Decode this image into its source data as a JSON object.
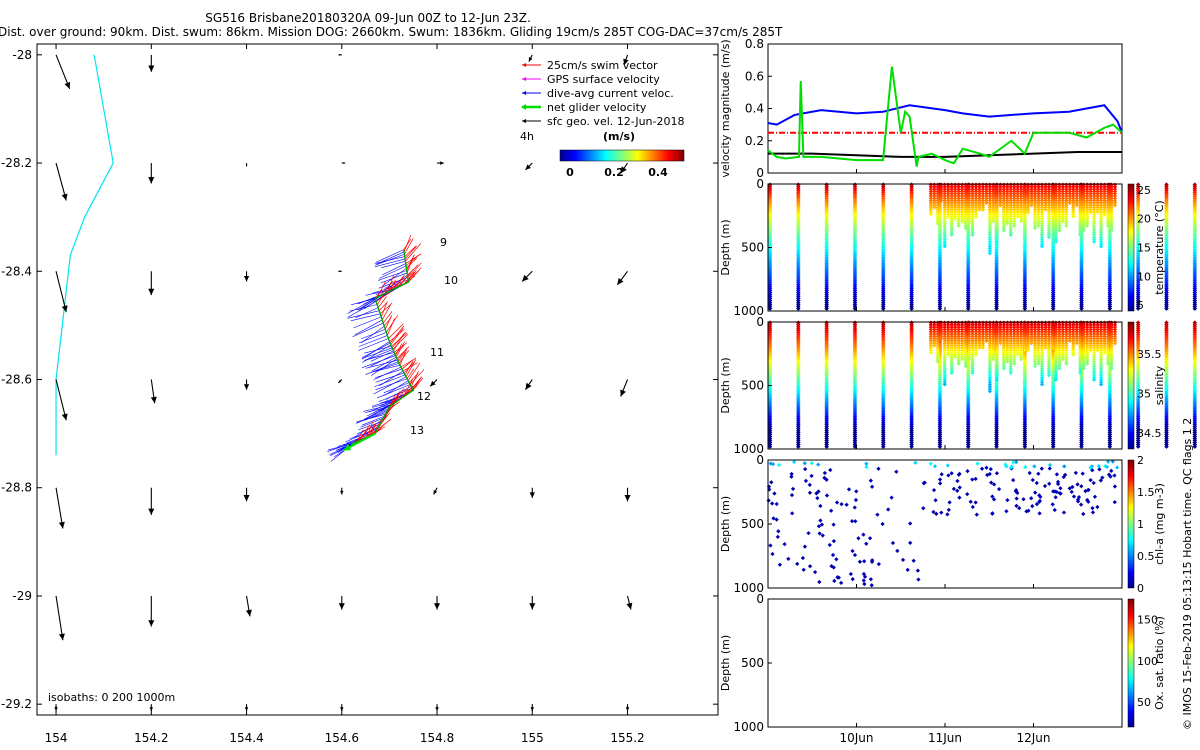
{
  "title": {
    "line1": "SG516 Brisbane20180320A 09-Jun 00Z to 12-Jun 23Z.",
    "line2": "Dist. over ground: 90km. Dist. swum: 86km. Mission DOG: 2660km. Swum: 1836km. Gliding 19cm/s 285T COG-DAC=37cm/s 285T"
  },
  "credit": "© IMOS 15-Feb-2019 05:13:15 Hobart time. QC flags 1 2",
  "chart_data": [
    {
      "type": "scatter",
      "id": "map",
      "xticks": [
        "154",
        "154.2",
        "154.4",
        "154.6",
        "154.8",
        "155",
        "155.2"
      ],
      "yticks": [
        "-28",
        "-28.2",
        "-28.4",
        "-28.6",
        "-28.8",
        "-29",
        "-29.2"
      ],
      "xlim": [
        153.96,
        155.39
      ],
      "ylim": [
        -29.22,
        -27.98
      ],
      "legend": [
        {
          "label": "25cm/s swim vector",
          "color": "#ff0000"
        },
        {
          "label": "GPS surface velocity",
          "color": "#ff00ff"
        },
        {
          "label": "dive-avg current veloc.",
          "color": "#0000ff"
        },
        {
          "label": "net glider velocity",
          "color": "#00dd00"
        },
        {
          "label": "sfc geo. vel. 12-Jun-2018",
          "color": "#000000"
        }
      ],
      "time_step_label": "4h",
      "colorbar": {
        "title": "(m/s)",
        "ticks": [
          "0",
          "0.2",
          "0.4"
        ]
      },
      "isobath_label": "isobaths: 0   200  1000m",
      "track_labels": [
        "9",
        "10",
        "11",
        "12",
        "13"
      ],
      "isobath_line": [
        [
          154.08,
          -28.0
        ],
        [
          154.1,
          -28.1
        ],
        [
          154.12,
          -28.2
        ],
        [
          154.06,
          -28.3
        ],
        [
          154.03,
          -28.37
        ],
        [
          154.0,
          -28.6
        ],
        [
          154.0,
          -28.74
        ]
      ],
      "glider_track": [
        [
          154.73,
          -28.36
        ],
        [
          154.74,
          -28.42
        ],
        [
          154.67,
          -28.45
        ],
        [
          154.7,
          -28.53
        ],
        [
          154.72,
          -28.57
        ],
        [
          154.75,
          -28.62
        ],
        [
          154.7,
          -28.65
        ],
        [
          154.67,
          -28.7
        ],
        [
          154.62,
          -28.72
        ]
      ],
      "geo_vectors": [
        [
          154.0,
          -28.0,
          0.04,
          -0.1
        ],
        [
          154.2,
          -28.0,
          0.0,
          -0.05
        ],
        [
          154.6,
          -28.0,
          -0.01,
          0.0
        ],
        [
          154.8,
          -28.0,
          0.0,
          0.0
        ],
        [
          155.0,
          -28.0,
          -0.01,
          -0.02
        ],
        [
          155.2,
          -28.0,
          -0.01,
          -0.03
        ],
        [
          154.0,
          -28.2,
          0.03,
          -0.11
        ],
        [
          154.2,
          -28.2,
          0.0,
          -0.06
        ],
        [
          154.4,
          -28.2,
          0.0,
          -0.01
        ],
        [
          154.6,
          -28.2,
          0.01,
          0.0
        ],
        [
          154.8,
          -28.2,
          0.02,
          0.0
        ],
        [
          155.0,
          -28.2,
          -0.02,
          -0.02
        ],
        [
          155.2,
          -28.2,
          -0.02,
          -0.03
        ],
        [
          154.0,
          -28.4,
          0.03,
          -0.12
        ],
        [
          154.2,
          -28.4,
          0.0,
          -0.07
        ],
        [
          154.4,
          -28.4,
          0.0,
          -0.03
        ],
        [
          154.6,
          -28.4,
          -0.01,
          0.0
        ],
        [
          154.8,
          -28.4,
          0.0,
          0.0
        ],
        [
          155.0,
          -28.4,
          -0.03,
          -0.03
        ],
        [
          155.2,
          -28.4,
          -0.03,
          -0.04
        ],
        [
          154.0,
          -28.6,
          0.03,
          -0.12
        ],
        [
          154.2,
          -28.6,
          0.01,
          -0.07
        ],
        [
          154.4,
          -28.6,
          0.0,
          -0.03
        ],
        [
          154.6,
          -28.6,
          -0.01,
          -0.01
        ],
        [
          154.8,
          -28.6,
          -0.02,
          -0.02
        ],
        [
          155.0,
          -28.6,
          -0.02,
          -0.03
        ],
        [
          155.2,
          -28.6,
          -0.02,
          -0.05
        ],
        [
          154.0,
          -28.8,
          0.02,
          -0.12
        ],
        [
          154.2,
          -28.8,
          0.0,
          -0.08
        ],
        [
          154.4,
          -28.8,
          0.0,
          -0.04
        ],
        [
          154.6,
          -28.8,
          0.0,
          -0.02
        ],
        [
          154.8,
          -28.8,
          -0.01,
          -0.02
        ],
        [
          155.0,
          -28.8,
          0.0,
          -0.03
        ],
        [
          155.2,
          -28.8,
          0.0,
          -0.04
        ],
        [
          154.0,
          -29.0,
          0.02,
          -0.13
        ],
        [
          154.2,
          -29.0,
          0.0,
          -0.09
        ],
        [
          154.4,
          -29.0,
          0.01,
          -0.06
        ],
        [
          154.6,
          -29.0,
          0.0,
          -0.04
        ],
        [
          154.8,
          -29.0,
          0.0,
          -0.04
        ],
        [
          155.0,
          -29.0,
          0.0,
          -0.04
        ],
        [
          155.2,
          -29.0,
          0.01,
          -0.04
        ],
        [
          154.0,
          -29.2,
          0.0,
          -0.02
        ],
        [
          154.2,
          -29.2,
          0.0,
          -0.02
        ],
        [
          154.4,
          -29.2,
          0.0,
          -0.02
        ],
        [
          154.6,
          -29.2,
          0.0,
          -0.02
        ],
        [
          154.8,
          -29.2,
          0.0,
          -0.02
        ],
        [
          155.0,
          -29.2,
          0.0,
          -0.02
        ],
        [
          155.2,
          -29.2,
          0.0,
          -0.02
        ]
      ]
    },
    {
      "type": "line",
      "id": "velocity",
      "ylabel": "velocity magnitude (m/s)",
      "yticks": [
        "0",
        "0.2",
        "0.4",
        "0.6",
        "0.8"
      ],
      "ylim": [
        0,
        0.8
      ],
      "xlim": [
        0,
        4
      ],
      "series": [
        {
          "name": "dive-avg current",
          "color": "#0000ff",
          "x": [
            0,
            0.1,
            0.3,
            0.6,
            1.0,
            1.3,
            1.6,
            2.0,
            2.2,
            2.5,
            3.0,
            3.4,
            3.8,
            3.95,
            4.0
          ],
          "y": [
            0.31,
            0.3,
            0.36,
            0.39,
            0.37,
            0.38,
            0.42,
            0.39,
            0.37,
            0.35,
            0.37,
            0.38,
            0.42,
            0.32,
            0.25
          ]
        },
        {
          "name": "swim vector",
          "color": "#ff0000",
          "x": [
            0,
            4.0
          ],
          "y": [
            0.25,
            0.25
          ]
        },
        {
          "name": "surface geo",
          "color": "#000000",
          "x": [
            0,
            0.5,
            1.0,
            1.5,
            2.0,
            2.5,
            3.0,
            3.5,
            4.0
          ],
          "y": [
            0.12,
            0.12,
            0.11,
            0.1,
            0.1,
            0.11,
            0.12,
            0.13,
            0.13
          ]
        },
        {
          "name": "net glider",
          "color": "#00dd00",
          "x": [
            0,
            0.1,
            0.2,
            0.35,
            0.37,
            0.4,
            0.6,
            0.8,
            1.0,
            1.3,
            1.4,
            1.5,
            1.55,
            1.6,
            1.68,
            1.7,
            1.85,
            2.0,
            2.1,
            2.2,
            2.4,
            2.5,
            2.75,
            2.9,
            3.0,
            3.4,
            3.6,
            3.8,
            3.9,
            4.0
          ],
          "y": [
            0.14,
            0.1,
            0.09,
            0.1,
            0.57,
            0.1,
            0.1,
            0.09,
            0.08,
            0.08,
            0.66,
            0.25,
            0.38,
            0.35,
            0.04,
            0.1,
            0.12,
            0.08,
            0.06,
            0.15,
            0.12,
            0.1,
            0.2,
            0.12,
            0.25,
            0.25,
            0.22,
            0.28,
            0.3,
            0.25
          ]
        }
      ]
    },
    {
      "type": "heatmap",
      "id": "temperature",
      "ylabel": "Depth (m)",
      "cbar_label": "temperature (°C)",
      "yticks": [
        "0",
        "500",
        "1000"
      ],
      "cbar_ticks": [
        "25",
        "20",
        "15",
        "10",
        "5"
      ],
      "vmin": 4,
      "vmax": 26,
      "shallow_depths": [
        400,
        250,
        350,
        200,
        600,
        450,
        550,
        300,
        500,
        350,
        600,
        400,
        450
      ]
    },
    {
      "type": "heatmap",
      "id": "salinity",
      "ylabel": "Depth (m)",
      "cbar_label": "salinity",
      "yticks": [
        "0",
        "500",
        "1000"
      ],
      "cbar_ticks": [
        "35.5",
        "35",
        "34.5"
      ],
      "vmin": 34.3,
      "vmax": 35.9,
      "shallow_depths": [
        400,
        250,
        350,
        200,
        600,
        450,
        550,
        300,
        500,
        350,
        600,
        400,
        450
      ]
    },
    {
      "type": "scatter",
      "id": "chl",
      "ylabel": "Depth (m)",
      "cbar_label": "chl-a (mg m-3)",
      "yticks": [
        "0",
        "500",
        "1000"
      ],
      "cbar_ticks": [
        "2",
        "1.5",
        "1",
        "0.5",
        "0"
      ],
      "vmin": 0,
      "vmax": 2
    },
    {
      "type": "heatmap",
      "id": "oxygen",
      "ylabel": "Depth (m)",
      "cbar_label": "Ox. sat. ratio (%)",
      "yticks": [
        "0",
        "500",
        "1000"
      ],
      "cbar_ticks": [
        "150",
        "100",
        "50"
      ],
      "vmin": 20,
      "vmax": 175,
      "xticks": [
        "10Jun",
        "11Jun",
        "12Jun"
      ]
    }
  ]
}
